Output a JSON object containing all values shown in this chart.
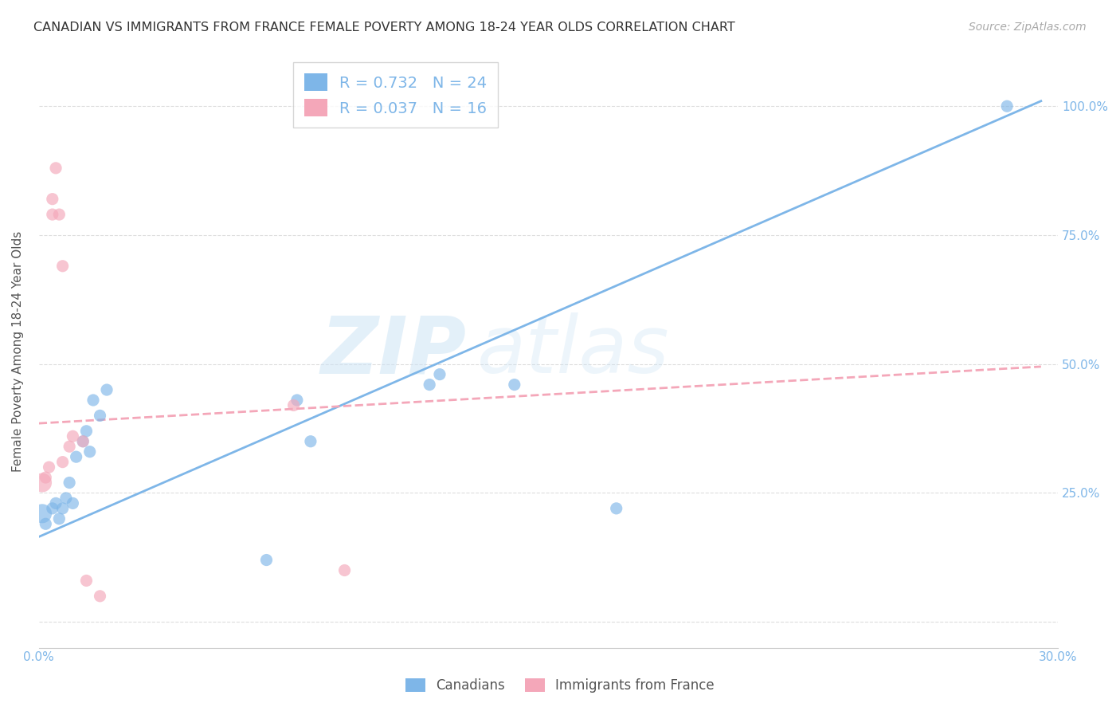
{
  "title": "CANADIAN VS IMMIGRANTS FROM FRANCE FEMALE POVERTY AMONG 18-24 YEAR OLDS CORRELATION CHART",
  "source": "Source: ZipAtlas.com",
  "ylabel": "Female Poverty Among 18-24 Year Olds",
  "xlabel": "",
  "xlim": [
    0.0,
    0.3
  ],
  "ylim": [
    -0.05,
    1.1
  ],
  "yticks": [
    0.0,
    0.25,
    0.5,
    0.75,
    1.0
  ],
  "ytick_labels": [
    "",
    "25.0%",
    "50.0%",
    "75.0%",
    "100.0%"
  ],
  "xticks": [
    0.0,
    0.05,
    0.1,
    0.15,
    0.2,
    0.25,
    0.3
  ],
  "xtick_labels": [
    "0.0%",
    "",
    "",
    "",
    "",
    "",
    "30.0%"
  ],
  "canadian_R": 0.732,
  "canadian_N": 24,
  "france_R": 0.037,
  "france_N": 16,
  "canadian_color": "#7EB6E8",
  "france_color": "#F4A7B9",
  "canadian_data_x": [
    0.001,
    0.002,
    0.004,
    0.005,
    0.006,
    0.007,
    0.008,
    0.009,
    0.01,
    0.011,
    0.013,
    0.014,
    0.015,
    0.016,
    0.018,
    0.02,
    0.067,
    0.076,
    0.08,
    0.115,
    0.118,
    0.14,
    0.17,
    0.285
  ],
  "canadian_data_y": [
    0.21,
    0.19,
    0.22,
    0.23,
    0.2,
    0.22,
    0.24,
    0.27,
    0.23,
    0.32,
    0.35,
    0.37,
    0.33,
    0.43,
    0.4,
    0.45,
    0.12,
    0.43,
    0.35,
    0.46,
    0.48,
    0.46,
    0.22,
    1.0
  ],
  "france_data_x": [
    0.001,
    0.002,
    0.003,
    0.004,
    0.004,
    0.005,
    0.006,
    0.007,
    0.007,
    0.009,
    0.01,
    0.013,
    0.014,
    0.018,
    0.075,
    0.09
  ],
  "france_data_y": [
    0.27,
    0.28,
    0.3,
    0.82,
    0.79,
    0.88,
    0.79,
    0.69,
    0.31,
    0.34,
    0.36,
    0.35,
    0.08,
    0.05,
    0.42,
    0.1
  ],
  "canadian_trendline_x": [
    0.0,
    0.295
  ],
  "canadian_trendline_y": [
    0.165,
    1.01
  ],
  "france_trendline_x": [
    0.0,
    0.295
  ],
  "france_trendline_y": [
    0.385,
    0.495
  ],
  "watermark_zip": "ZIP",
  "watermark_atlas": "atlas",
  "background_color": "#ffffff",
  "grid_color": "#dddddd",
  "title_color": "#333333",
  "axis_label_color": "#555555",
  "tick_label_color": "#7EB6E8",
  "right_tick_color": "#7EB6E8",
  "marker_size": 120,
  "marker_size_large": 300
}
